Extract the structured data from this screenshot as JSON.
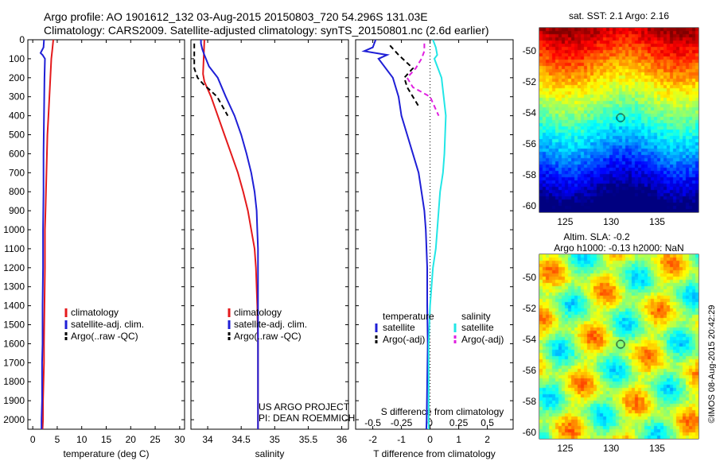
{
  "header": {
    "line1": "Argo profile: AO 1901612_132 03-Aug-2015 20150803_720 54.296S 131.03E",
    "line2": "Climatology: CARS2009. Satellite-adjusted climatology: synTS_20150801.nc (2.6d earlier)"
  },
  "colors": {
    "climatology": "#e41a1c",
    "satellite": "#1f1fd6",
    "argo": "#000000",
    "salinity_sat": "#22e6e6",
    "salinity_argo": "#e020e0"
  },
  "depth_axis": {
    "ticks": [
      0,
      100,
      200,
      300,
      400,
      500,
      600,
      700,
      800,
      900,
      1000,
      1100,
      1200,
      1300,
      1400,
      1500,
      1600,
      1700,
      1800,
      1900,
      2000
    ],
    "range": [
      0,
      2050
    ]
  },
  "chart_data": [
    {
      "type": "line",
      "panel": "temperature",
      "xlabel": "temperature (deg C)",
      "xlim": [
        -1,
        31
      ],
      "xticks": [
        0,
        5,
        10,
        15,
        20,
        25,
        30
      ],
      "ylim": [
        2050,
        0
      ],
      "legend": [
        "climatology",
        "satellite-adj. clim.",
        "Argo(..raw -QC)"
      ],
      "series": [
        {
          "name": "climatology",
          "color": "#e41a1c",
          "x": [
            4.2,
            4.0,
            3.8,
            3.6,
            3.4,
            3.2,
            3.0,
            2.9,
            2.8,
            2.7,
            2.6,
            2.5,
            2.5,
            2.4,
            2.3,
            2.3,
            2.2,
            2.1,
            2.1,
            2.0
          ],
          "y": [
            0,
            50,
            100,
            200,
            300,
            400,
            500,
            600,
            700,
            800,
            900,
            1000,
            1200,
            1400,
            1600,
            1700,
            1800,
            1900,
            2000,
            2050
          ]
        },
        {
          "name": "satellite-adj. clim.",
          "color": "#1f1fd6",
          "x": [
            2.3,
            2.2,
            1.6,
            2.0,
            2.5,
            2.4,
            2.3,
            2.2,
            2.2,
            2.1,
            2.1,
            2.0,
            2.0,
            2.0,
            1.9,
            1.9,
            1.9,
            1.8,
            1.8
          ],
          "y": [
            0,
            40,
            70,
            80,
            100,
            200,
            400,
            600,
            800,
            1000,
            1200,
            1400,
            1500,
            1600,
            1700,
            1800,
            1900,
            2000,
            2050
          ]
        },
        {
          "name": "Argo(..raw -QC)",
          "color": "#000000",
          "x": [],
          "y": []
        }
      ]
    },
    {
      "type": "line",
      "panel": "salinity",
      "xlabel": "salinity",
      "xlim": [
        33.75,
        36.1
      ],
      "xticks": [
        34,
        34.5,
        35,
        35.5,
        36
      ],
      "ylim": [
        2050,
        0
      ],
      "legend": [
        "climatology",
        "satellite-adj. clim.",
        "Argo(..raw -QC)"
      ],
      "series": [
        {
          "name": "climatology",
          "color": "#e41a1c",
          "x": [
            33.95,
            33.94,
            33.93,
            33.95,
            34.05,
            34.15,
            34.25,
            34.35,
            34.45,
            34.53,
            34.6,
            34.65,
            34.7,
            34.72,
            34.74,
            34.75,
            34.75
          ],
          "y": [
            0,
            100,
            180,
            220,
            300,
            400,
            500,
            600,
            700,
            800,
            900,
            1000,
            1100,
            1200,
            1400,
            1600,
            2050
          ]
        },
        {
          "name": "satellite-adj. clim.",
          "color": "#1f1fd6",
          "x": [
            33.9,
            33.9,
            33.92,
            33.95,
            34.02,
            34.15,
            34.27,
            34.4,
            34.5,
            34.58,
            34.65,
            34.7,
            34.73,
            34.74,
            34.75,
            34.75,
            34.75,
            34.75,
            34.75
          ],
          "y": [
            0,
            20,
            50,
            80,
            140,
            200,
            300,
            400,
            500,
            600,
            700,
            800,
            900,
            1000,
            1100,
            1200,
            1400,
            1800,
            2050
          ]
        },
        {
          "name": "Argo(..raw -QC)",
          "color": "#000000",
          "x": [
            33.8,
            33.8,
            33.85,
            33.9,
            33.95,
            34.02,
            34.14,
            34.22,
            34.3
          ],
          "y": [
            20,
            150,
            200,
            220,
            240,
            260,
            300,
            350,
            400
          ]
        }
      ]
    },
    {
      "type": "line",
      "panel": "difference",
      "xlabel": "T difference from climatology",
      "xlabel_top": "S difference from climatology",
      "xlim": [
        -2.6,
        2.9
      ],
      "xticks": [
        -2,
        -1,
        0,
        1,
        2
      ],
      "sticks_labels": [
        "-0.5",
        "-0.25",
        "0",
        "0.25",
        "0.5"
      ],
      "ylim": [
        2050,
        0
      ],
      "legend_temperature_title": "temperature",
      "legend_salinity_title": "salinity",
      "legend": [
        "satellite",
        "Argo(-adj)",
        "satellite",
        "Argo(-adj)"
      ],
      "series": [
        {
          "name": "temperature satellite",
          "color": "#1f1fd6",
          "x": [
            -1.9,
            -2.0,
            -2.3,
            -1.5,
            -1.8,
            -1.3,
            -1.1,
            -1.0,
            -0.8,
            -0.6,
            -0.4,
            -0.3,
            -0.2,
            -0.15,
            -0.1,
            -0.1,
            -0.08,
            -0.1,
            -0.12,
            -0.13
          ],
          "y": [
            0,
            40,
            60,
            80,
            100,
            200,
            300,
            400,
            500,
            600,
            700,
            800,
            900,
            1000,
            1200,
            1400,
            1600,
            1800,
            2000,
            2050
          ]
        },
        {
          "name": "temperature Argo(-adj)",
          "color": "#000000",
          "x": [
            -1.4,
            -1.1,
            -0.6,
            -0.9,
            -0.8,
            -0.6,
            -0.4
          ],
          "y": [
            30,
            80,
            150,
            200,
            250,
            300,
            350
          ]
        },
        {
          "name": "salinity satellite",
          "color": "#22e6e6",
          "x": [
            0.1,
            0.2,
            0.25,
            0.15,
            0.4,
            0.55,
            0.5,
            0.45,
            0.35,
            0.3,
            0.25,
            0.2,
            0.1,
            0.05,
            0.0,
            -0.05,
            -0.05
          ],
          "y": [
            0,
            40,
            80,
            100,
            200,
            400,
            600,
            700,
            800,
            900,
            1000,
            1100,
            1200,
            1300,
            1400,
            1600,
            2050
          ]
        },
        {
          "name": "salinity Argo(-adj)",
          "color": "#e020e0",
          "x": [
            -0.2,
            -0.2,
            -0.3,
            -0.5,
            -0.8,
            -0.6,
            0.0,
            0.3
          ],
          "y": [
            20,
            60,
            100,
            150,
            200,
            250,
            300,
            400
          ]
        }
      ]
    },
    {
      "type": "heatmap",
      "panel": "sst_map",
      "title": "sat. SST: 2.1 Argo: 2.16",
      "xticks": [
        125,
        130,
        135
      ],
      "yticks": [
        -50,
        -52,
        -54,
        -56,
        -58,
        -60
      ],
      "xlim": [
        122.2,
        139.5
      ],
      "ylim": [
        -60.4,
        -48.5
      ],
      "argo_position": {
        "lon": 131.03,
        "lat": -54.3
      }
    },
    {
      "type": "heatmap",
      "panel": "sla_map",
      "title": "Altim. SLA: -0.2",
      "subtitle": "Argo h1000: -0.13 h2000: NaN",
      "xticks": [
        125,
        130,
        135
      ],
      "yticks": [
        -50,
        -52,
        -54,
        -56,
        -58,
        -60
      ],
      "xlim": [
        122.2,
        139.5
      ],
      "ylim": [
        -60.4,
        -48.5
      ],
      "argo_position": {
        "lon": 131.03,
        "lat": -54.3
      }
    }
  ],
  "footer": {
    "project1": "US ARGO PROJECT",
    "project2": "PI: DEAN ROEMMICH",
    "stamp": "©IMOS 08-Aug-2015 20:42:29"
  }
}
